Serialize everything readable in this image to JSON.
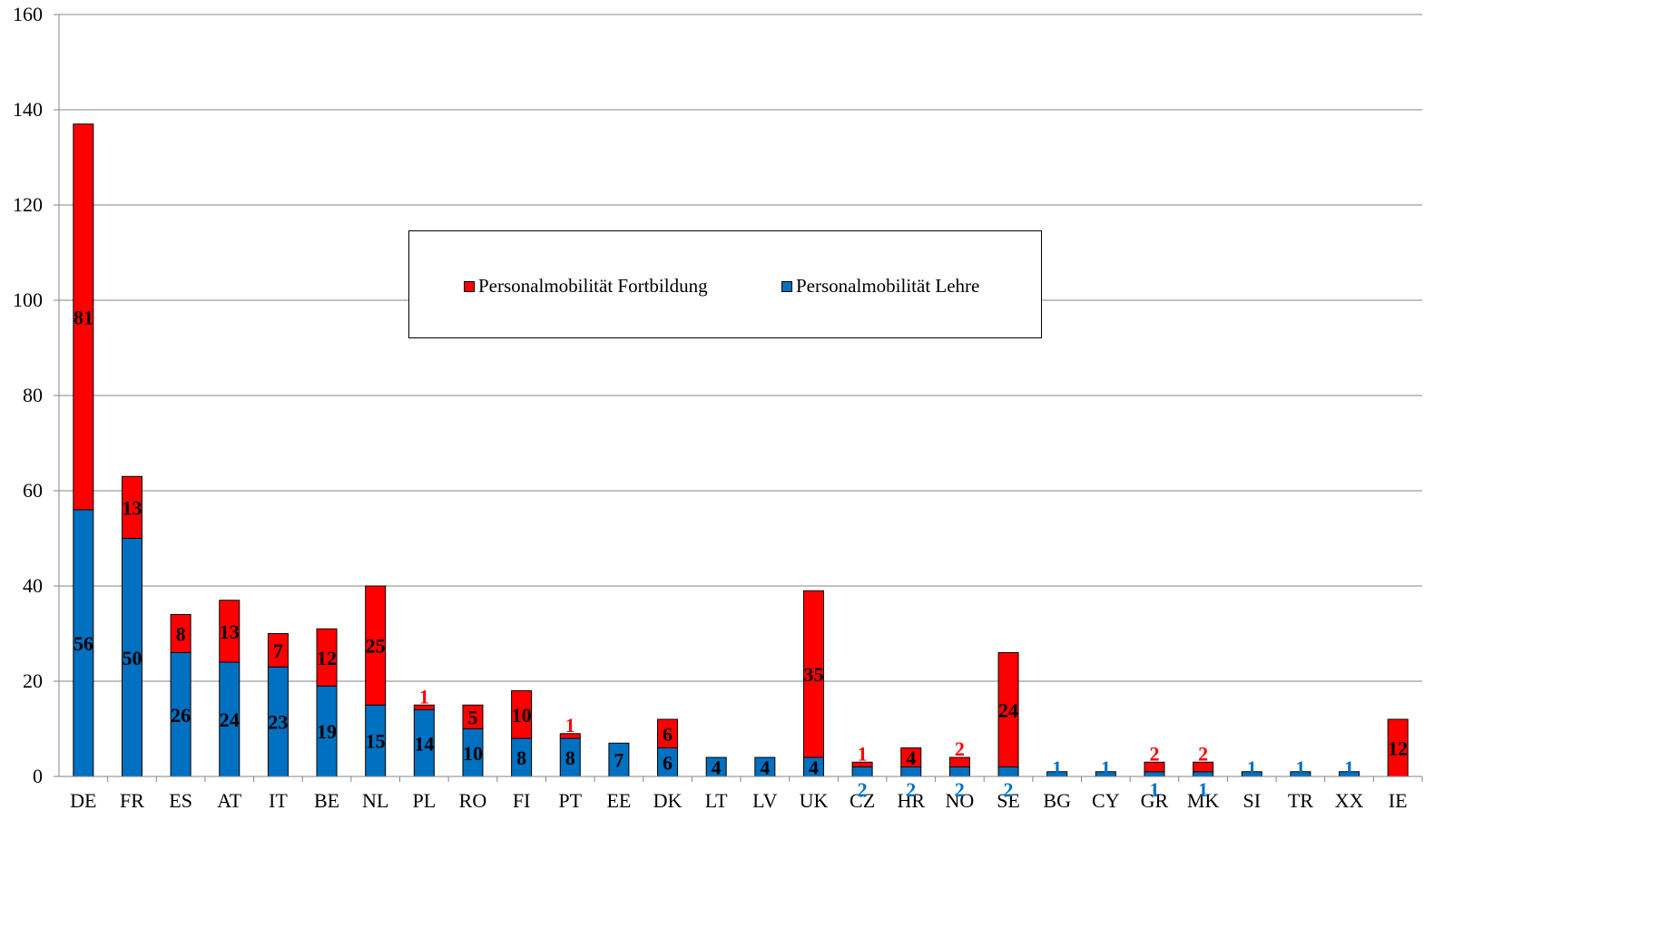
{
  "chart_data": {
    "type": "bar",
    "stacked": true,
    "categories": [
      "DE",
      "FR",
      "ES",
      "AT",
      "IT",
      "BE",
      "NL",
      "PL",
      "RO",
      "FI",
      "PT",
      "EE",
      "DK",
      "LT",
      "LV",
      "UK",
      "CZ",
      "HR",
      "NO",
      "SE",
      "BG",
      "CY",
      "GR",
      "MK",
      "SI",
      "TR",
      "XX",
      "IE"
    ],
    "series": [
      {
        "name": "Personalmobilität Lehre",
        "color": "#0070C0",
        "values": [
          56,
          50,
          26,
          24,
          23,
          19,
          15,
          14,
          10,
          8,
          8,
          7,
          6,
          4,
          4,
          4,
          2,
          2,
          2,
          2,
          1,
          1,
          1,
          1,
          1,
          1,
          1,
          0
        ]
      },
      {
        "name": "Personalmobilität Fortbildung",
        "color": "#FF0000",
        "values": [
          81,
          13,
          8,
          13,
          7,
          12,
          25,
          1,
          5,
          10,
          1,
          0,
          6,
          0,
          0,
          35,
          1,
          4,
          2,
          24,
          0,
          0,
          2,
          2,
          0,
          0,
          0,
          12
        ]
      }
    ],
    "ylim": [
      0,
      160
    ],
    "yticks": [
      "0",
      "20",
      "40",
      "60",
      "80",
      "100",
      "120",
      "140",
      "160"
    ],
    "grid": true,
    "legend_placement": "center"
  },
  "legend": {
    "items": [
      {
        "label": "Personalmobilität Fortbildung",
        "color": "#FF0000"
      },
      {
        "label": "Personalmobilität Lehre",
        "color": "#0070C0"
      }
    ]
  }
}
